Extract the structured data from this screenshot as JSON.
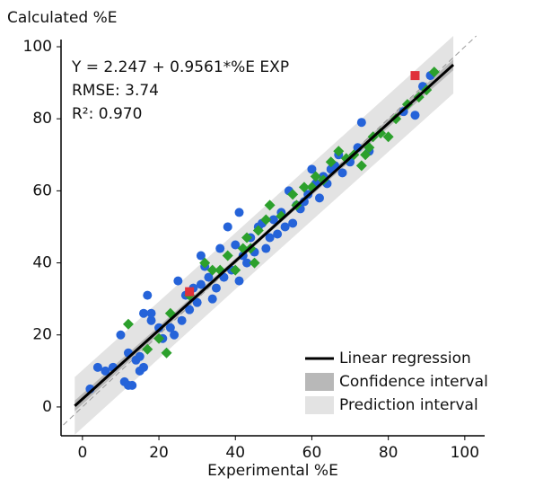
{
  "chart_data": {
    "type": "scatter",
    "y_label": "Calculated %E",
    "x_label": "Experimental %E",
    "xlim": [
      -5.6,
      105.2
    ],
    "ylim": [
      -8,
      102
    ],
    "xticks": [
      0,
      20,
      40,
      60,
      80,
      100
    ],
    "yticks": [
      0,
      20,
      40,
      60,
      80,
      100
    ],
    "annotations": [
      "Y = 2.247 + 0.9561*%E EXP",
      "RMSE: 3.74",
      "R²: 0.970"
    ],
    "reference_line": {
      "color": "#999999",
      "x": [
        -5,
        103
      ],
      "y": [
        -5,
        103
      ]
    },
    "prediction_interval": {
      "name": "Prediction interval",
      "color": "#e3e3e3",
      "x": [
        -2,
        47,
        97
      ],
      "lower": [
        -7.7,
        39.4,
        87
      ],
      "upper": [
        8.3,
        55,
        103
      ]
    },
    "confidence_interval": {
      "name": "Confidence interval",
      "color": "#b8b8b8",
      "x": [
        -2,
        47,
        97
      ],
      "lower": [
        -1.2,
        46.6,
        93.5
      ],
      "upper": [
        1.8,
        47.8,
        96.5
      ]
    },
    "regression": {
      "name": "Linear regression",
      "color": "#000000",
      "x": [
        -2,
        97
      ],
      "y": [
        0.3,
        95
      ]
    },
    "series": [
      {
        "marker": "circle",
        "color": "#2563d9",
        "x": [
          2,
          4,
          6,
          8,
          10,
          11,
          12,
          13,
          12,
          14,
          15,
          15,
          16,
          16,
          17,
          18,
          18,
          20,
          21,
          23,
          24,
          25,
          26,
          27,
          28,
          29,
          30,
          31,
          31,
          32,
          33,
          34,
          35,
          36,
          37,
          38,
          39,
          40,
          41,
          41,
          42,
          43,
          44,
          45,
          46,
          47,
          48,
          49,
          50,
          51,
          52,
          53,
          54,
          55,
          56,
          57,
          58,
          59,
          60,
          61,
          62,
          63,
          64,
          65,
          66,
          67,
          68,
          70,
          72,
          73,
          75,
          84,
          87,
          89,
          91
        ],
        "values": [
          5,
          11,
          10,
          11,
          20,
          7,
          6,
          6,
          15,
          13,
          10,
          14,
          11,
          26,
          31,
          24,
          26,
          22,
          19,
          22,
          20,
          35,
          24,
          31,
          27,
          33,
          29,
          42,
          34,
          39,
          36,
          30,
          33,
          44,
          36,
          50,
          38,
          45,
          54,
          35,
          42,
          40,
          47,
          43,
          50,
          51,
          44,
          47,
          52,
          48,
          54,
          50,
          60,
          51,
          56,
          55,
          57,
          59,
          66,
          62,
          58,
          64,
          62,
          66,
          67,
          70,
          65,
          68,
          72,
          79,
          71,
          82,
          81,
          89,
          92
        ]
      },
      {
        "marker": "diamond",
        "color": "#2ca02c",
        "x": [
          12,
          17,
          20,
          22,
          23,
          28,
          32,
          34,
          36,
          38,
          40,
          42,
          43,
          44,
          45,
          46,
          48,
          49,
          52,
          55,
          56,
          58,
          60,
          61,
          63,
          65,
          67,
          69,
          71,
          73,
          74,
          75,
          76,
          78,
          80,
          82,
          85,
          88,
          90,
          92
        ],
        "values": [
          23,
          16,
          19,
          15,
          26,
          31,
          40,
          38,
          38,
          42,
          38,
          44,
          47,
          44,
          40,
          49,
          52,
          56,
          53,
          59,
          56,
          61,
          61,
          64,
          63,
          68,
          71,
          69,
          70,
          67,
          70,
          72,
          75,
          76,
          75,
          80,
          84,
          86,
          88,
          93
        ]
      },
      {
        "marker": "square",
        "color": "#e0303a",
        "x": [
          28,
          87
        ],
        "values": [
          32,
          92
        ]
      }
    ]
  }
}
